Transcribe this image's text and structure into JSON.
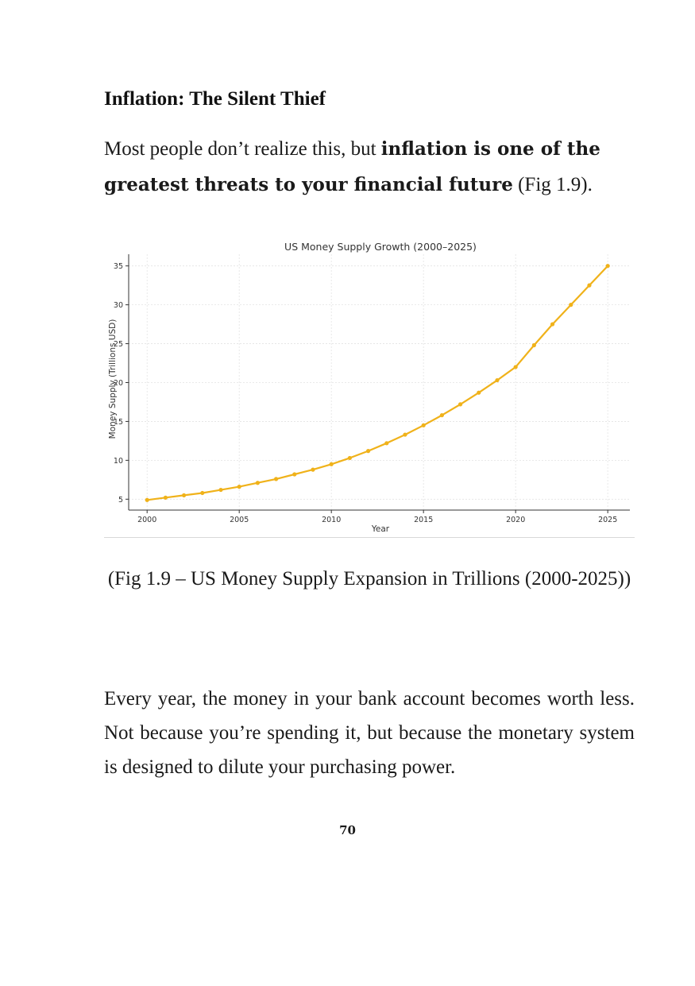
{
  "heading": "Inflation: The Silent Thief",
  "para1": {
    "lead": "Most people don’t realize this, but ",
    "bold": "inflation is one of the greatest threats to your financial future",
    "ref": " (Fig 1.9)."
  },
  "caption": "(Fig 1.9 – US Money Supply Expansion in Trillions (2000-2025))",
  "para2": "Every year, the money in your bank account becomes worth less. Not because you’re spending it, but because the monetary system is designed to dilute your purchasing power.",
  "page_number": "70",
  "colors": {
    "line": "#f0b21a",
    "grid": "#e3e3e3",
    "axis": "#333333"
  },
  "chart_data": {
    "type": "line",
    "title": "US Money Supply Growth (2000–2025)",
    "xlabel": "Year",
    "ylabel": "Money Supply (Trillions USD)",
    "x": [
      2000,
      2001,
      2002,
      2003,
      2004,
      2005,
      2006,
      2007,
      2008,
      2009,
      2010,
      2011,
      2012,
      2013,
      2014,
      2015,
      2016,
      2017,
      2018,
      2019,
      2020,
      2021,
      2022,
      2023,
      2024,
      2025
    ],
    "series": [
      {
        "values": [
          4.9,
          5.2,
          5.5,
          5.8,
          6.2,
          6.6,
          7.1,
          7.6,
          8.2,
          8.8,
          9.5,
          10.3,
          11.2,
          12.2,
          13.3,
          14.5,
          15.8,
          17.2,
          18.7,
          20.3,
          22.0,
          24.8,
          27.5,
          30.0,
          32.5,
          35.0
        ]
      }
    ],
    "xlim": [
      1999,
      2026.2
    ],
    "ylim": [
      3.6,
      36.5
    ],
    "xticks": [
      2000,
      2005,
      2010,
      2015,
      2020,
      2025
    ],
    "yticks": [
      5,
      10,
      15,
      20,
      25,
      30,
      35
    ],
    "grid": true
  }
}
